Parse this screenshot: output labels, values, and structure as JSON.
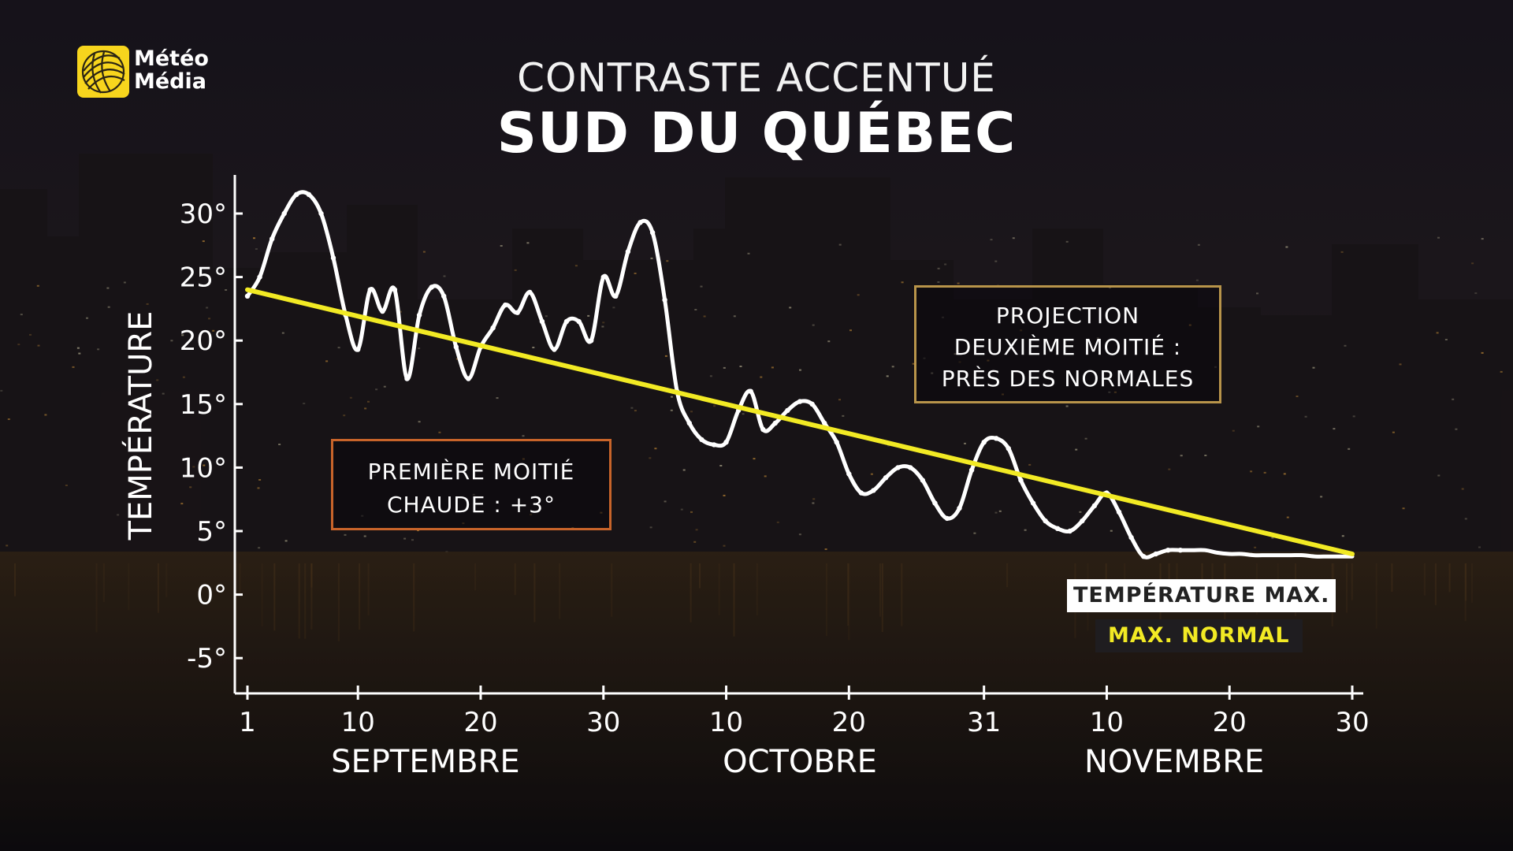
{
  "header": {
    "logo_line1": "Météo",
    "logo_line2": "Média",
    "title_top": "CONTRASTE ACCENTUÉ",
    "title_main": "SUD DU QUÉBEC"
  },
  "annotations": {
    "first_half_line1": "PREMIÈRE MOITIÉ",
    "first_half_line2": "CHAUDE : +3°",
    "projection_line1": "PROJECTION",
    "projection_line2": "DEUXIÈME MOITIÉ :",
    "projection_line3": "PRÈS DES NORMALES"
  },
  "colors": {
    "max_line": "#ffffff",
    "normal_line": "#f2ea24",
    "first_box_border": "#c8642a",
    "projection_box_border": "#b8944a",
    "logo": "#f7d51d"
  },
  "chart_data": {
    "type": "line",
    "ylabel": "TEMPÉRATURE",
    "ylim": [
      -8,
      33
    ],
    "yticks": [
      30,
      25,
      20,
      15,
      10,
      5,
      0,
      -5
    ],
    "ytick_labels": [
      "30°",
      "25°",
      "20°",
      "15°",
      "10°",
      "5°",
      "0°",
      "-5°"
    ],
    "xlim": [
      1,
      91
    ],
    "xticks": [
      {
        "day": 1,
        "label": "1"
      },
      {
        "day": 10,
        "label": "10"
      },
      {
        "day": 20,
        "label": "20"
      },
      {
        "day": 30,
        "label": "30"
      },
      {
        "day": 40,
        "label": "10"
      },
      {
        "day": 50,
        "label": "20"
      },
      {
        "day": 61,
        "label": "31"
      },
      {
        "day": 71,
        "label": "10"
      },
      {
        "day": 81,
        "label": "20"
      },
      {
        "day": 91,
        "label": "30"
      }
    ],
    "months": [
      {
        "label": "SEPTEMBRE",
        "center_day": 15.5
      },
      {
        "label": "OCTOBRE",
        "center_day": 46
      },
      {
        "label": "NOVEMBRE",
        "center_day": 76.5
      }
    ],
    "legend": [
      "TEMPÉRATURE MAX.",
      "MAX. NORMAL"
    ],
    "series": [
      {
        "name": "TEMPÉRATURE MAX.",
        "color": "#ffffff",
        "x": [
          1,
          2,
          3,
          4,
          5,
          6,
          7,
          8,
          9,
          10,
          11,
          12,
          13,
          14,
          15,
          16,
          17,
          18,
          19,
          20,
          21,
          22,
          23,
          24,
          25,
          26,
          27,
          28,
          29,
          30,
          31,
          32,
          33,
          34,
          35,
          36,
          37,
          38,
          39,
          40,
          41,
          42,
          43,
          44,
          45,
          46,
          47,
          48,
          49,
          50,
          51,
          52,
          53,
          54,
          55,
          56,
          57,
          58,
          59,
          60,
          61,
          62,
          63,
          64,
          65,
          66,
          67,
          68,
          69,
          70,
          71,
          72,
          73,
          74,
          75,
          76,
          77,
          78,
          79,
          80,
          81,
          82,
          83,
          84,
          85,
          86,
          87,
          88,
          89,
          90,
          91
        ],
        "values": [
          23.5,
          25,
          28,
          30,
          31.5,
          31.5,
          30,
          26.5,
          22,
          19.3,
          24,
          22.3,
          24,
          17,
          22,
          24.2,
          23.5,
          19.5,
          17,
          19.5,
          21,
          22.8,
          22.2,
          23.8,
          21.5,
          19.3,
          21.5,
          21.5,
          20,
          25,
          23.5,
          27,
          29.3,
          28.5,
          23.2,
          16,
          13.5,
          12.2,
          11.8,
          12,
          14.5,
          16,
          13,
          13.5,
          14.5,
          15.2,
          15,
          13.5,
          12,
          9.5,
          8,
          8.2,
          9.2,
          10,
          10,
          9,
          7.2,
          6,
          6.8,
          9.8,
          12,
          12.3,
          11.5,
          9,
          7.2,
          5.8,
          5.2,
          5,
          5.8,
          7,
          8,
          6.5,
          4.5,
          3,
          3.2,
          3.5,
          3.5,
          3.5,
          3.5,
          3.3,
          3.2,
          3.2,
          3.1,
          3.1,
          3.1,
          3.1,
          3.1,
          3.0,
          3.0,
          3.0,
          3.0
        ]
      },
      {
        "name": "MAX. NORMAL",
        "color": "#f2ea24",
        "x": [
          1,
          91
        ],
        "values": [
          24,
          3.2
        ]
      }
    ]
  }
}
